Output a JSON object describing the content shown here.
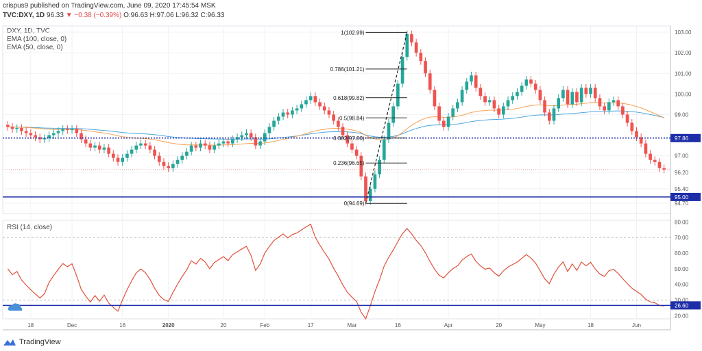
{
  "header": {
    "line1": "crispus9 published on TradingView.com, June 09, 2020 17:45:54 MSK",
    "user": "crispus9",
    "symbol": "TVC:DXY, 1D",
    "last": "96.33",
    "change": "▼ −0.38 (−0.39%)",
    "open": "O:96.63",
    "high": "H:97.06",
    "low": "L:96.32",
    "close": "C:96.33"
  },
  "legend": {
    "title": "DXY, 1D, TVC",
    "ema100": "EMA (100, close, 0)",
    "ema50": "EMA (50, close, 0)",
    "rsi": "RSI (14, close)"
  },
  "brand": "TradingView",
  "colors": {
    "up": "#26a69a",
    "down": "#ef5350",
    "ema100": "#4da6e0",
    "ema50": "#f5a050",
    "rsi": "#e0503c",
    "blue": "#1d2ea8",
    "grid": "#f0f2f5"
  },
  "chart_data": [
    {
      "type": "candlestick",
      "ylim": [
        94.2,
        103.3
      ],
      "price_ticks": [
        "103.00",
        "102.00",
        "101.00",
        "100.00",
        "99.00",
        "97.00",
        "96.20",
        "95.40",
        "94.70"
      ],
      "x_ticks": [
        {
          "label": "18",
          "i": 5
        },
        {
          "label": "Dec",
          "i": 14
        },
        {
          "label": "16",
          "i": 25
        },
        {
          "label": "2020",
          "i": 35
        },
        {
          "label": "20",
          "i": 47
        },
        {
          "label": "Feb",
          "i": 56
        },
        {
          "label": "17",
          "i": 66
        },
        {
          "label": "Mar",
          "i": 75
        },
        {
          "label": "16",
          "i": 85
        },
        {
          "label": "Apr",
          "i": 96
        },
        {
          "label": "20",
          "i": 107
        },
        {
          "label": "May",
          "i": 116
        },
        {
          "label": "18",
          "i": 127
        },
        {
          "label": "Jun",
          "i": 137
        }
      ],
      "hlines": [
        {
          "value": 97.86,
          "label": "97.86",
          "style": "dotted"
        },
        {
          "value": 95.0,
          "label": "95.00",
          "style": "solid"
        }
      ],
      "fibonacci": [
        {
          "value": 102.99,
          "label": "1(102.99)"
        },
        {
          "value": 101.21,
          "label": "0.786(101.21)"
        },
        {
          "value": 99.82,
          "label": "0.618(99.82)"
        },
        {
          "value": 98.84,
          "label": "0.5(98.84)"
        },
        {
          "value": 97.86,
          "label": "0.382(97.86)"
        },
        {
          "value": 96.65,
          "label": "0.236(96.65)"
        },
        {
          "value": 94.69,
          "label": "0(94.69)"
        }
      ],
      "fib_i": [
        78,
        87
      ],
      "current_value": 96.33,
      "closes": [
        98.4,
        98.3,
        98.35,
        98.2,
        98.1,
        98.0,
        97.9,
        97.8,
        97.85,
        98.0,
        98.1,
        98.2,
        98.3,
        98.25,
        98.3,
        98.1,
        97.8,
        97.6,
        97.4,
        97.5,
        97.3,
        97.4,
        97.1,
        96.9,
        96.7,
        96.9,
        97.1,
        97.3,
        97.5,
        97.6,
        97.5,
        97.3,
        97.0,
        96.7,
        96.5,
        96.4,
        96.6,
        96.8,
        97.0,
        97.2,
        97.5,
        97.4,
        97.6,
        97.5,
        97.3,
        97.5,
        97.6,
        97.7,
        97.6,
        97.8,
        97.9,
        98.0,
        98.1,
        97.9,
        97.5,
        97.7,
        98.1,
        98.4,
        98.7,
        98.9,
        99.1,
        99.0,
        99.2,
        99.3,
        99.5,
        99.7,
        99.9,
        99.6,
        99.4,
        99.2,
        99.0,
        98.7,
        98.4,
        98.0,
        97.6,
        97.3,
        97.0,
        96.0,
        94.8,
        95.4,
        96.1,
        96.8,
        97.8,
        98.6,
        99.4,
        100.5,
        101.8,
        102.9,
        102.5,
        102.0,
        101.6,
        101.0,
        100.2,
        99.4,
        98.7,
        98.4,
        98.9,
        99.3,
        99.6,
        100.2,
        100.6,
        100.9,
        100.3,
        99.9,
        99.6,
        99.7,
        99.3,
        99.0,
        99.4,
        99.7,
        99.9,
        100.1,
        100.4,
        100.7,
        100.5,
        100.2,
        99.7,
        99.1,
        98.7,
        99.3,
        99.8,
        100.2,
        99.5,
        100.1,
        99.6,
        100.3,
        100.0,
        100.3,
        99.8,
        99.4,
        99.2,
        99.6,
        99.7,
        99.4,
        99.0,
        98.6,
        98.2,
        97.9,
        97.6,
        97.1,
        96.8,
        96.7,
        96.4,
        96.33
      ]
    },
    {
      "type": "line",
      "name": "RSI (14, close)",
      "ylim": [
        18,
        81
      ],
      "y_ticks": [
        "80.00",
        "70.00",
        "60.00",
        "50.00",
        "40.00",
        "30.00",
        "20.00"
      ],
      "bands": [
        70,
        30
      ],
      "hline": {
        "value": 26.6,
        "label": "26.60"
      },
      "x_ticks_from": 0
    }
  ]
}
